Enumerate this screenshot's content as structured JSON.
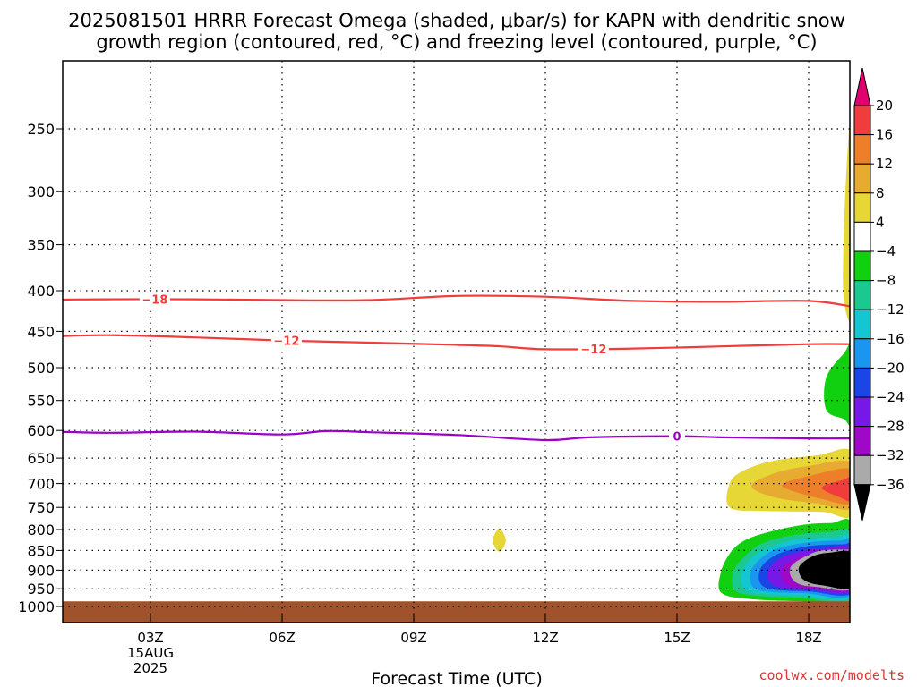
{
  "title_line1": "2025081501 HRRR Forecast Omega (shaded, μbar/s) for KAPN with dendritic snow",
  "title_line2": "growth region (contoured, red, °C) and freezing level (contoured, purple, °C)",
  "credit": "coolwx.com/modelts",
  "chart_data": {
    "type": "time-height cross section",
    "xlabel": "Forecast Time (UTC)",
    "x_ticks": [
      {
        "hour": 3,
        "label": "03Z"
      },
      {
        "hour": 6,
        "label": "06Z"
      },
      {
        "hour": 9,
        "label": "09Z"
      },
      {
        "hour": 12,
        "label": "12Z"
      },
      {
        "hour": 15,
        "label": "15Z"
      },
      {
        "hour": 18,
        "label": "18Z"
      }
    ],
    "x_date_lines": [
      "15AUG",
      "2025"
    ],
    "xlim": [
      0,
      19
    ],
    "y_ticks": [
      250,
      300,
      350,
      400,
      450,
      500,
      550,
      600,
      650,
      700,
      750,
      800,
      850,
      900,
      950,
      1000
    ],
    "ylim": [
      200,
      1020
    ],
    "grid": "dotted",
    "colorbar": {
      "ticks": [
        "20",
        "16",
        "12",
        "8",
        "4",
        "−4",
        "−8",
        "−12",
        "−16",
        "−20",
        "−24",
        "−28",
        "−32",
        "−36"
      ],
      "colors": [
        "#e0006e",
        "#f03c3c",
        "#ee7f2a",
        "#e8ab32",
        "#e6d737",
        "#ffffff",
        "#10d010",
        "#1ac890",
        "#14c6d2",
        "#1a96f0",
        "#1a46e6",
        "#7818e6",
        "#a008c8",
        "#aaaaaa",
        "#000000"
      ]
    },
    "contours": [
      {
        "name": "dendritic growth -18",
        "color": "#f03c3c",
        "label": "−18",
        "points": [
          [
            0,
            411
          ],
          [
            2,
            410
          ],
          [
            4,
            410
          ],
          [
            6,
            411
          ],
          [
            8,
            411
          ],
          [
            10,
            406
          ],
          [
            12,
            407
          ],
          [
            14,
            412
          ],
          [
            16,
            413
          ],
          [
            18,
            412
          ],
          [
            19,
            419
          ]
        ]
      },
      {
        "name": "dendritic growth -12",
        "color": "#f03c3c",
        "label": "−12",
        "points": [
          [
            0,
            458
          ],
          [
            2,
            455
          ],
          [
            4,
            458
          ],
          [
            6,
            462
          ],
          [
            8,
            465
          ],
          [
            10,
            468
          ],
          [
            11,
            470
          ],
          [
            12,
            474
          ],
          [
            14,
            473
          ],
          [
            16,
            470
          ],
          [
            18,
            467
          ],
          [
            19,
            467
          ]
        ]
      },
      {
        "name": "freezing level 0",
        "color": "#9a00c8",
        "label": "0",
        "points": [
          [
            0,
            600
          ],
          [
            2,
            604
          ],
          [
            4,
            602
          ],
          [
            6,
            607
          ],
          [
            7,
            601
          ],
          [
            8,
            603
          ],
          [
            10,
            608
          ],
          [
            12,
            617
          ],
          [
            13,
            612
          ],
          [
            15,
            610
          ],
          [
            16,
            612
          ],
          [
            18,
            614
          ],
          [
            19,
            614
          ]
        ]
      }
    ],
    "omega_regions": [
      {
        "name": "omega 4 to 8 upper",
        "color": "#e6d737",
        "points": [
          [
            18.8,
            410
          ],
          [
            18.8,
            340
          ],
          [
            18.9,
            260
          ],
          [
            19,
            240
          ],
          [
            19,
            420
          ]
        ]
      },
      {
        "name": "omega -4 to -8 mid",
        "color": "#10d010",
        "points": [
          [
            18.4,
            565
          ],
          [
            18.4,
            515
          ],
          [
            18.8,
            480
          ],
          [
            19,
            470
          ],
          [
            19,
            585
          ],
          [
            18.8,
            580
          ]
        ]
      },
      {
        "name": "omega 4 to 8 low",
        "color": "#e6d737",
        "points": [
          [
            16.2,
            750
          ],
          [
            16.2,
            700
          ],
          [
            16.5,
            675
          ],
          [
            17.2,
            655
          ],
          [
            18.2,
            645
          ],
          [
            19,
            640
          ],
          [
            19,
            765
          ],
          [
            18.3,
            760
          ],
          [
            17,
            758
          ]
        ]
      },
      {
        "name": "omega 8 to 12",
        "color": "#e8ab32",
        "points": [
          [
            16.7,
            705
          ],
          [
            17.2,
            680
          ],
          [
            18,
            665
          ],
          [
            19,
            660
          ],
          [
            19,
            750
          ],
          [
            18.2,
            742
          ],
          [
            17.2,
            728
          ]
        ]
      },
      {
        "name": "omega 12 to 16",
        "color": "#ee7f2a",
        "points": [
          [
            17.4,
            705
          ],
          [
            18,
            685
          ],
          [
            19,
            672
          ],
          [
            19,
            740
          ],
          [
            18.3,
            732
          ]
        ]
      },
      {
        "name": "omega 16 to 20",
        "color": "#f03c3c",
        "points": [
          [
            18.3,
            708
          ],
          [
            18.8,
            692
          ],
          [
            19,
            688
          ],
          [
            19,
            735
          ],
          [
            18.7,
            728
          ]
        ]
      },
      {
        "name": "omega -4 to -8 low",
        "color": "#10d010",
        "points": [
          [
            16,
            960
          ],
          [
            16,
            905
          ],
          [
            16.2,
            858
          ],
          [
            16.5,
            828
          ],
          [
            17,
            808
          ],
          [
            17.8,
            790
          ],
          [
            18.5,
            785
          ],
          [
            19,
            790
          ],
          [
            19,
            985
          ],
          [
            17.8,
            985
          ],
          [
            16.6,
            978
          ]
        ]
      },
      {
        "name": "omega -8 to -12",
        "color": "#1ac890",
        "points": [
          [
            16.3,
            950
          ],
          [
            16.3,
            900
          ],
          [
            16.6,
            858
          ],
          [
            17,
            830
          ],
          [
            17.7,
            812
          ],
          [
            18.5,
            805
          ],
          [
            19,
            810
          ],
          [
            19,
            975
          ],
          [
            17.8,
            975
          ],
          [
            16.7,
            968
          ]
        ]
      },
      {
        "name": "omega -12 to -16",
        "color": "#14c6d2",
        "points": [
          [
            16.5,
            945
          ],
          [
            16.5,
            900
          ],
          [
            16.8,
            860
          ],
          [
            17.2,
            838
          ],
          [
            17.8,
            822
          ],
          [
            18.6,
            818
          ],
          [
            19,
            822
          ],
          [
            19,
            970
          ],
          [
            17.8,
            968
          ],
          [
            16.8,
            962
          ]
        ]
      },
      {
        "name": "omega -16 to -20",
        "color": "#1a96f0",
        "points": [
          [
            16.7,
            940
          ],
          [
            16.7,
            898
          ],
          [
            17,
            862
          ],
          [
            17.4,
            842
          ],
          [
            18,
            830
          ],
          [
            18.7,
            826
          ],
          [
            19,
            830
          ],
          [
            19,
            965
          ],
          [
            17.9,
            962
          ],
          [
            17,
            957
          ]
        ]
      },
      {
        "name": "omega -20 to -24",
        "color": "#1a46e6",
        "points": [
          [
            16.9,
            935
          ],
          [
            16.9,
            896
          ],
          [
            17.2,
            864
          ],
          [
            17.6,
            848
          ],
          [
            18.1,
            838
          ],
          [
            18.8,
            835
          ],
          [
            19,
            838
          ],
          [
            19,
            960
          ],
          [
            18,
            957
          ],
          [
            17.2,
            952
          ]
        ]
      },
      {
        "name": "omega -24 to -28",
        "color": "#7818e6",
        "points": [
          [
            17.1,
            930
          ],
          [
            17.1,
            895
          ],
          [
            17.4,
            866
          ],
          [
            17.8,
            852
          ],
          [
            18.3,
            845
          ],
          [
            19,
            846
          ],
          [
            19,
            955
          ],
          [
            18,
            953
          ],
          [
            17.4,
            948
          ]
        ]
      },
      {
        "name": "omega -28 to -32",
        "color": "#a008c8",
        "points": [
          [
            17.4,
            925
          ],
          [
            17.4,
            892
          ],
          [
            17.7,
            870
          ],
          [
            18.1,
            858
          ],
          [
            18.6,
            852
          ],
          [
            19,
            855
          ],
          [
            19,
            950
          ],
          [
            18.1,
            948
          ],
          [
            17.6,
            942
          ]
        ]
      },
      {
        "name": "omega -32 to -36",
        "color": "#aaaaaa",
        "points": [
          [
            17.6,
            918
          ],
          [
            17.6,
            890
          ],
          [
            17.9,
            866
          ],
          [
            18.3,
            850
          ],
          [
            18.9,
            848
          ],
          [
            19,
            852
          ],
          [
            19,
            948
          ],
          [
            18.2,
            945
          ],
          [
            17.8,
            938
          ]
        ]
      },
      {
        "name": "omega below -36",
        "color": "#000000",
        "points": [
          [
            17.8,
            912
          ],
          [
            17.8,
            888
          ],
          [
            18.1,
            864
          ],
          [
            18.5,
            855
          ],
          [
            19,
            858
          ],
          [
            19,
            944
          ],
          [
            18.3,
            940
          ],
          [
            17.95,
            930
          ]
        ]
      },
      {
        "name": "omega 4 to 8 small",
        "color": "#e6d737",
        "points": [
          [
            10.95,
            797
          ],
          [
            11.1,
            826
          ],
          [
            10.95,
            853
          ],
          [
            10.8,
            826
          ]
        ]
      }
    ],
    "terrain": {
      "color": "#a0522d",
      "top_pressure": 985
    }
  }
}
